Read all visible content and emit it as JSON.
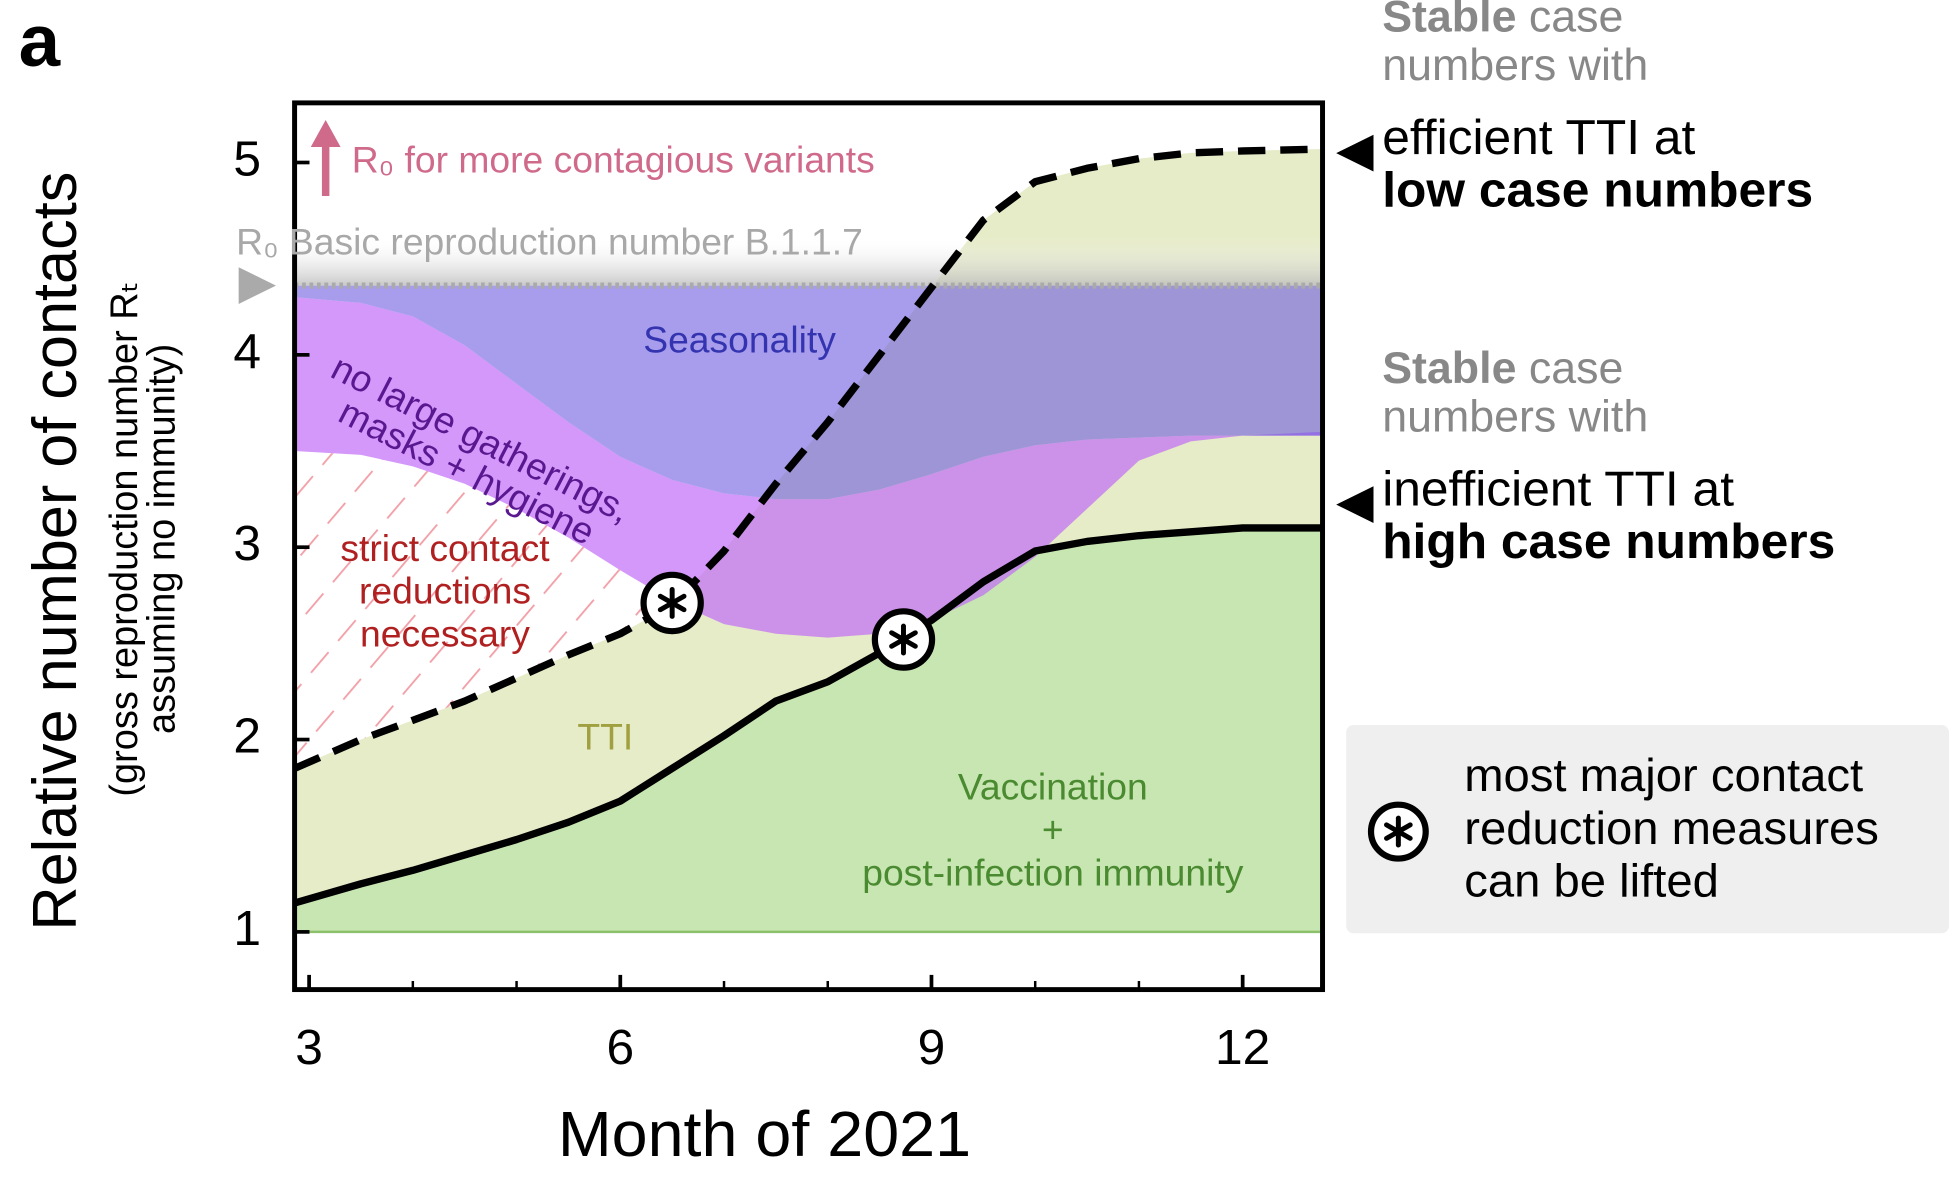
{
  "chart_data": {
    "type": "area",
    "panel_label": "a",
    "xlabel": "Month of 2021",
    "ylabel": "Relative number of contacts",
    "ylabel_sub": [
      "(gross reproduction number Rₜ",
      "assuming no immunity)"
    ],
    "xlim": [
      2.86,
      12.77
    ],
    "ylim": [
      0.7,
      5.31
    ],
    "xticks": [
      3,
      6,
      9,
      12
    ],
    "xticks_minor": [
      4,
      5,
      7,
      8,
      10,
      11
    ],
    "yticks": [
      1,
      2,
      3,
      4,
      5
    ],
    "x": [
      2.86,
      3.5,
      4,
      4.5,
      5,
      5.5,
      6,
      6.5,
      7,
      7.5,
      8,
      8.5,
      9,
      9.5,
      10,
      10.5,
      11,
      11.5,
      12,
      12.77
    ],
    "baseline": 1,
    "r0_level": 4.36,
    "series": [
      {
        "color": "#000000",
        "style": "dashed",
        "fill": "#e6ebc8",
        "values": [
          1.85,
          2.0,
          2.1,
          2.2,
          2.32,
          2.44,
          2.55,
          2.7,
          2.98,
          3.33,
          3.65,
          4.0,
          4.35,
          4.7,
          4.9,
          4.97,
          5.02,
          5.05,
          5.06,
          5.07
        ]
      },
      {
        "color": "#000000",
        "style": "solid",
        "fill": "#c8e6b2",
        "values": [
          1.15,
          1.25,
          1.32,
          1.4,
          1.48,
          1.57,
          1.68,
          1.85,
          2.02,
          2.2,
          2.3,
          2.45,
          2.62,
          2.82,
          2.98,
          3.03,
          3.06,
          3.08,
          3.1,
          3.1
        ]
      }
    ],
    "bands": [
      {
        "color": "#c06cf6",
        "values": [
          3.5,
          3.48,
          3.42,
          3.33,
          3.2,
          3.05,
          2.88,
          2.72,
          2.6,
          2.55,
          2.53,
          2.55,
          2.62,
          2.75,
          2.95,
          3.2,
          3.45,
          3.55,
          3.58,
          3.6
        ]
      },
      {
        "color": "#6c5ce0",
        "values": [
          4.3,
          4.27,
          4.2,
          4.05,
          3.85,
          3.65,
          3.47,
          3.35,
          3.28,
          3.25,
          3.25,
          3.3,
          3.38,
          3.47,
          3.53,
          3.56,
          3.57,
          3.58,
          3.58,
          3.58
        ]
      }
    ],
    "markers": [
      {
        "x": 6.5,
        "y": 2.71
      },
      {
        "x": 8.73,
        "y": 2.52
      }
    ],
    "annotations": {
      "variants": "R₀ for more contagious variants",
      "r0": "R₀ Basic reproduction number B.1.1.7",
      "seasonality": "Seasonality",
      "masks": [
        "no large gatherings,",
        "masks + hygiene"
      ],
      "strict": [
        "strict contact",
        "reductions",
        "necessary"
      ],
      "tti": "TTI",
      "vaccination": [
        "Vaccination",
        "+",
        "post-infection immunity"
      ]
    },
    "right_labels": [
      {
        "bold": "Stable",
        "rest": " case",
        "line2": "numbers with",
        "main": "efficient TTI at",
        "main_bold": "low case numbers"
      },
      {
        "bold": "Stable",
        "rest": " case",
        "line2": "numbers with",
        "main": "inefficient TTI at",
        "main_bold": "high case numbers"
      }
    ],
    "legend": [
      "most major contact",
      "reduction measures",
      "can be lifted"
    ]
  }
}
